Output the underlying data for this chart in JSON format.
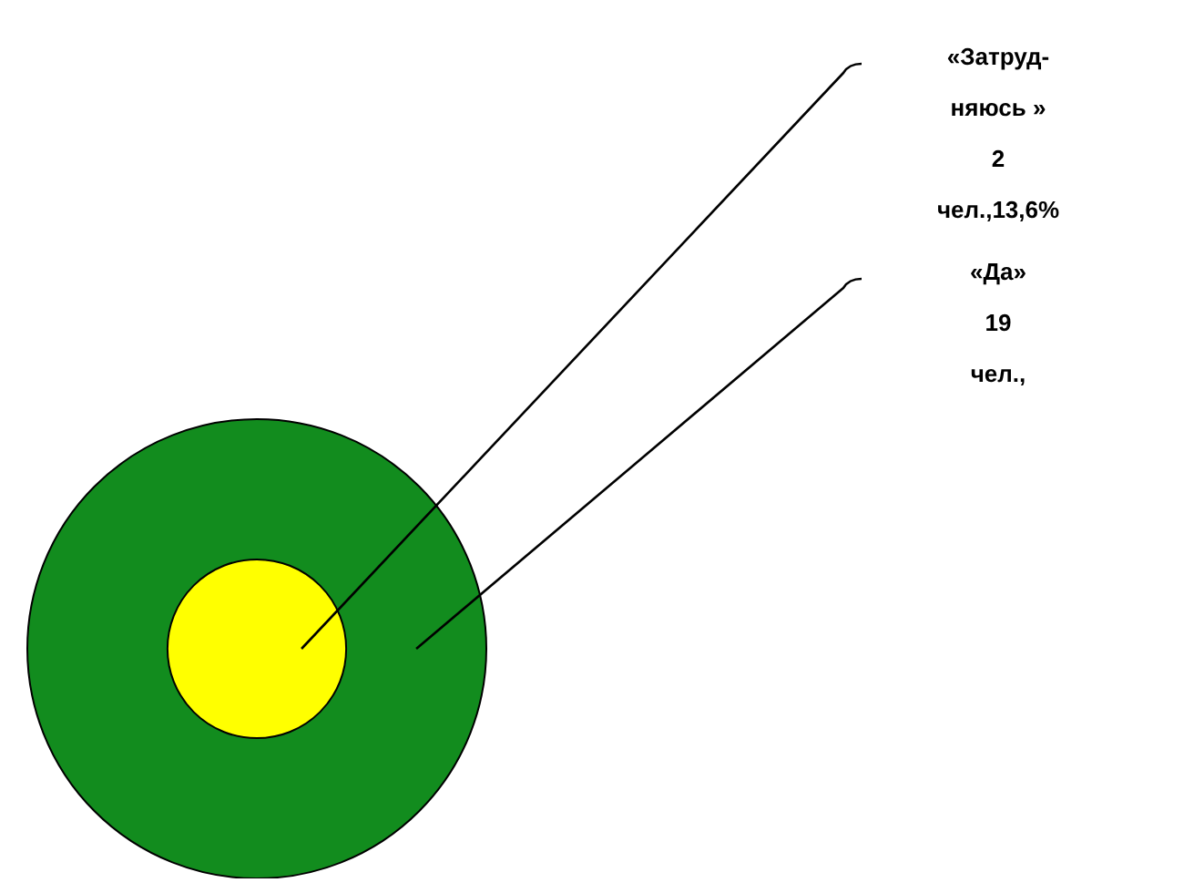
{
  "chart_data": {
    "type": "other",
    "categories": [
      "«Затруд-няюсь »",
      "«Да»"
    ],
    "values": [
      2,
      19
    ],
    "colors": [
      "#ffff00",
      "#128c1e"
    ],
    "value_labels": [
      "2 чел.,13,6%",
      "19 чел.,"
    ]
  }
}
